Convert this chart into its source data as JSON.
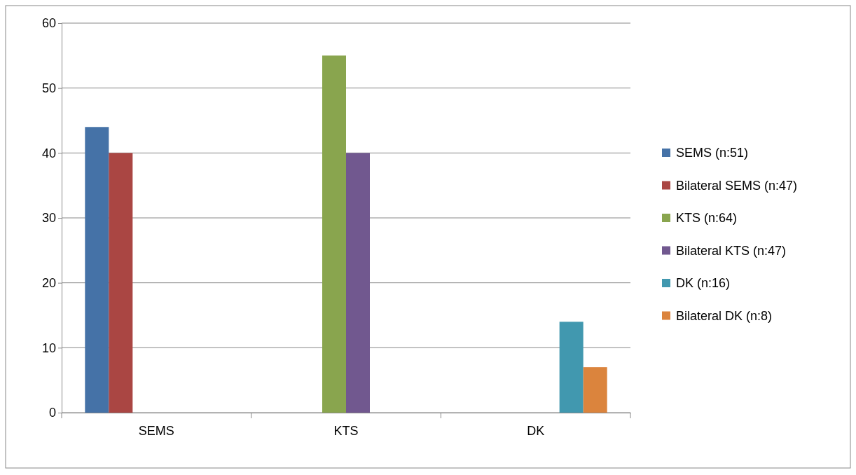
{
  "chart_data": {
    "type": "bar",
    "categories": [
      "SEMS",
      "KTS",
      "DK"
    ],
    "series": [
      {
        "name": "SEMS (n:51)",
        "color": "#4572a7",
        "values": [
          44,
          null,
          null
        ]
      },
      {
        "name": "Bilateral SEMS (n:47)",
        "color": "#aa4643",
        "values": [
          40,
          null,
          null
        ]
      },
      {
        "name": "KTS (n:64)",
        "color": "#89a54e",
        "values": [
          null,
          55,
          null
        ]
      },
      {
        "name": "Bilateral KTS (n:47)",
        "color": "#71588f",
        "values": [
          null,
          40,
          null
        ]
      },
      {
        "name": "DK (n:16)",
        "color": "#4198af",
        "values": [
          null,
          null,
          14
        ]
      },
      {
        "name": "Bilateral DK (n:8)",
        "color": "#db843d",
        "values": [
          null,
          null,
          7
        ]
      }
    ],
    "ylim": [
      0,
      60
    ],
    "yticks": [
      0,
      10,
      20,
      30,
      40,
      50,
      60
    ],
    "grid": "y",
    "legend": "right"
  }
}
